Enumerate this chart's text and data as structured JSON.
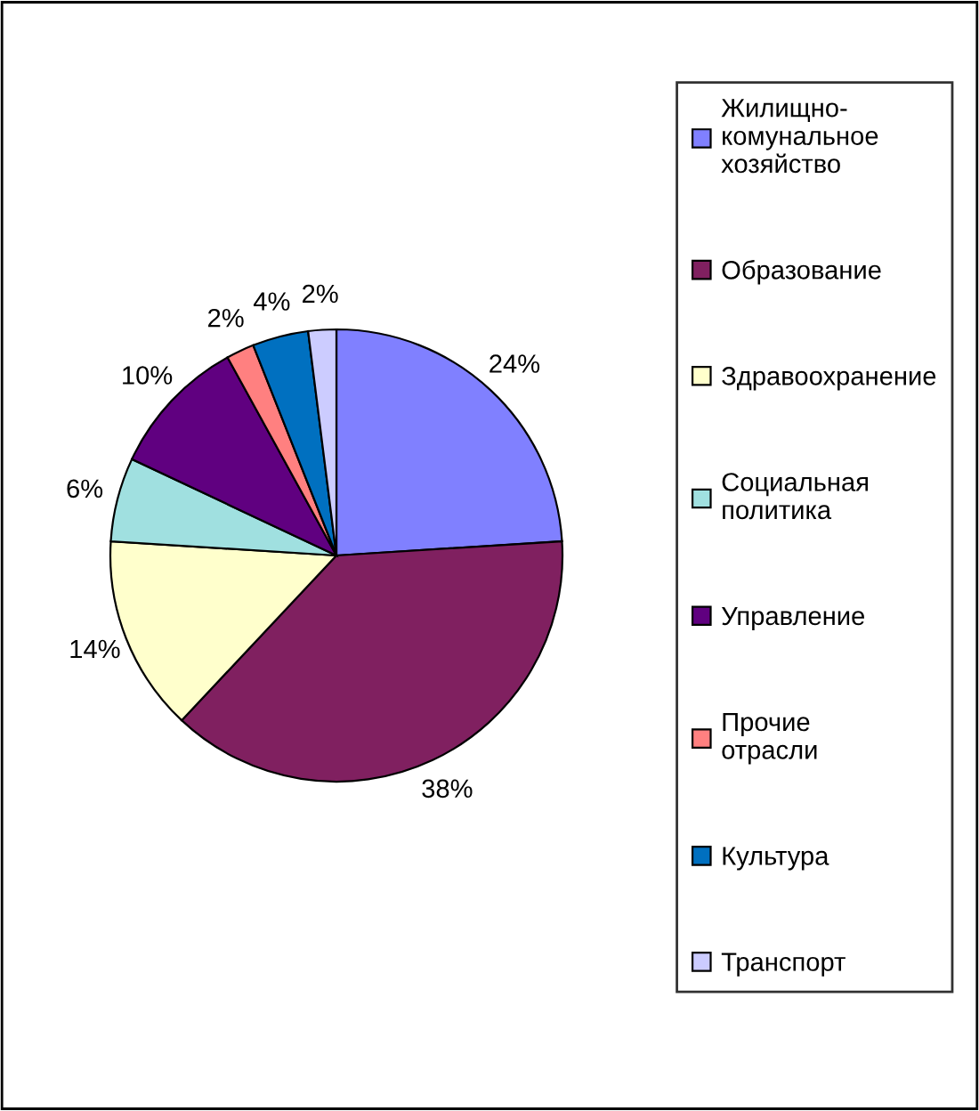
{
  "chart_data": {
    "type": "pie",
    "categories": [
      "Жилищно-комунальное хозяйство",
      "Образование",
      "Здравоохранение",
      "Социальная политика",
      "Управление",
      "Прочие отрасли",
      "Культура",
      "Транспорт"
    ],
    "values": [
      24,
      38,
      14,
      6,
      10,
      2,
      4,
      2
    ],
    "value_labels": [
      "24%",
      "38%",
      "14%",
      "6%",
      "10%",
      "2%",
      "4%",
      "2%"
    ],
    "colors": [
      "#8080ff",
      "#802060",
      "#ffffcc",
      "#a0e0e0",
      "#600080",
      "#ff8080",
      "#0070c0",
      "#ccccff"
    ],
    "legend": "right"
  }
}
